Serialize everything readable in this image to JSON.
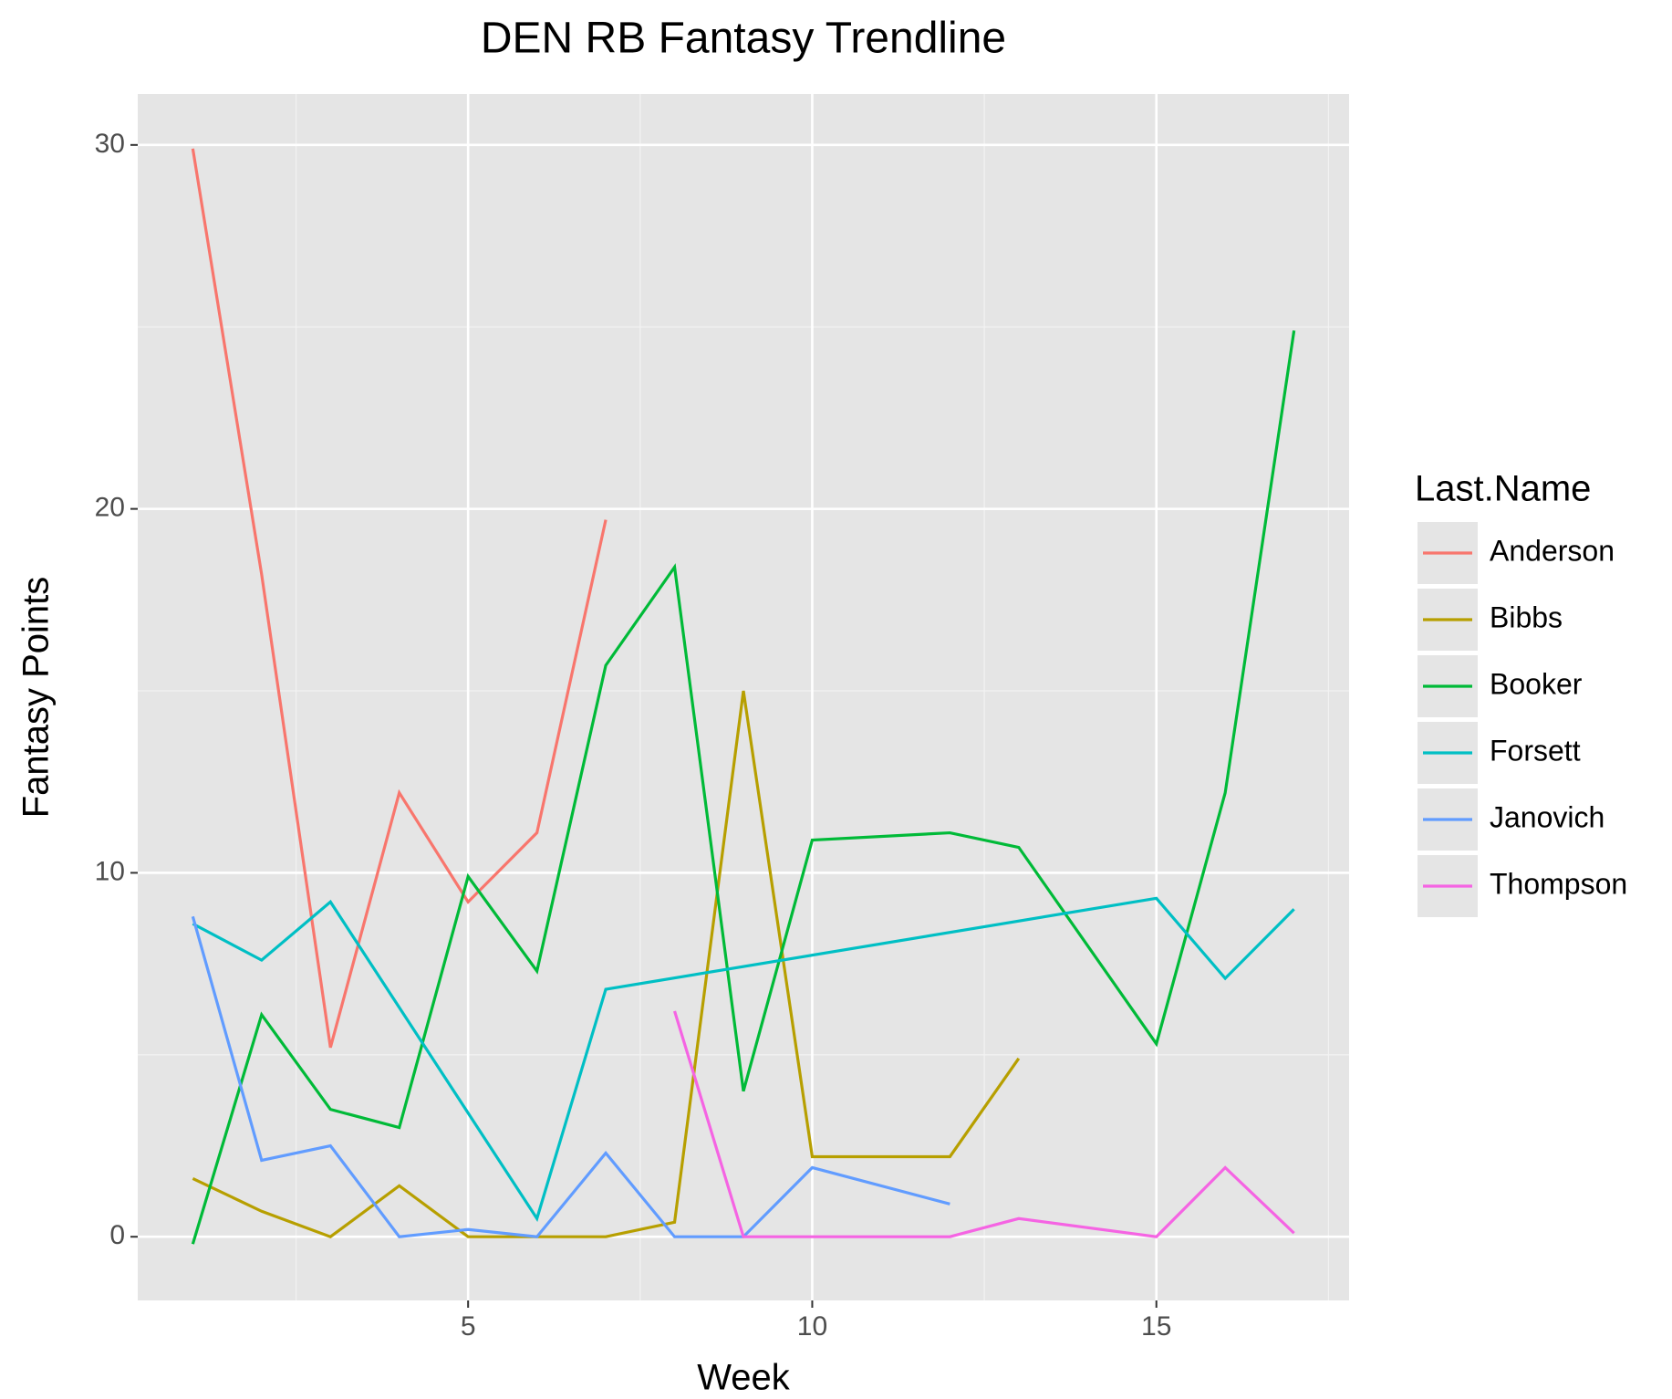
{
  "chart_data": {
    "type": "line",
    "title": "DEN RB Fantasy Trendline",
    "x_label": "Week",
    "y_label": "Fantasy Points",
    "legend_title": "Last.Name",
    "legend": "right",
    "grid": true,
    "xlim": [
      0.2,
      17.8
    ],
    "xticks": [
      5,
      10,
      15
    ],
    "ylim": [
      -1.75,
      31.4
    ],
    "yticks": [
      0,
      10,
      20,
      30
    ],
    "series": [
      {
        "name": "Anderson",
        "color": "#f8766d",
        "x": [
          1,
          2,
          3,
          4,
          5,
          6,
          7
        ],
        "values": [
          29.9,
          18.2,
          5.2,
          12.2,
          9.2,
          11.1,
          19.7
        ]
      },
      {
        "name": "Bibbs",
        "color": "#b79f00",
        "x": [
          1,
          2,
          3,
          4,
          5,
          6,
          7,
          8,
          9,
          10,
          12,
          13
        ],
        "values": [
          1.6,
          0.7,
          0,
          1.4,
          0,
          0,
          0,
          0.4,
          15.0,
          2.2,
          2.2,
          4.9
        ]
      },
      {
        "name": "Booker",
        "color": "#00ba38",
        "x": [
          1,
          2,
          3,
          4,
          5,
          6,
          7,
          8,
          9,
          10,
          12,
          13,
          15,
          16,
          17
        ],
        "values": [
          -0.2,
          6.1,
          3.5,
          3.0,
          9.9,
          7.3,
          15.7,
          18.4,
          4.0,
          10.9,
          11.1,
          10.7,
          5.3,
          12.2,
          24.9
        ]
      },
      {
        "name": "Forsett",
        "color": "#00bfc4",
        "x": [
          1,
          2,
          3,
          6,
          7,
          15,
          16,
          17
        ],
        "values": [
          8.6,
          7.6,
          9.2,
          0.5,
          6.8,
          9.3,
          7.1,
          9.0
        ]
      },
      {
        "name": "Janovich",
        "color": "#619cff",
        "x": [
          1,
          2,
          3,
          4,
          5,
          6,
          7,
          8,
          9,
          10,
          12
        ],
        "values": [
          8.8,
          2.1,
          2.5,
          0,
          0.2,
          0,
          2.3,
          0,
          0,
          1.9,
          0.9
        ]
      },
      {
        "name": "Thompson",
        "color": "#f564e3",
        "x": [
          8,
          9,
          10,
          12,
          13,
          15,
          16,
          17
        ],
        "values": [
          6.2,
          0,
          0,
          0,
          0.5,
          0,
          1.9,
          0.1
        ]
      }
    ]
  }
}
